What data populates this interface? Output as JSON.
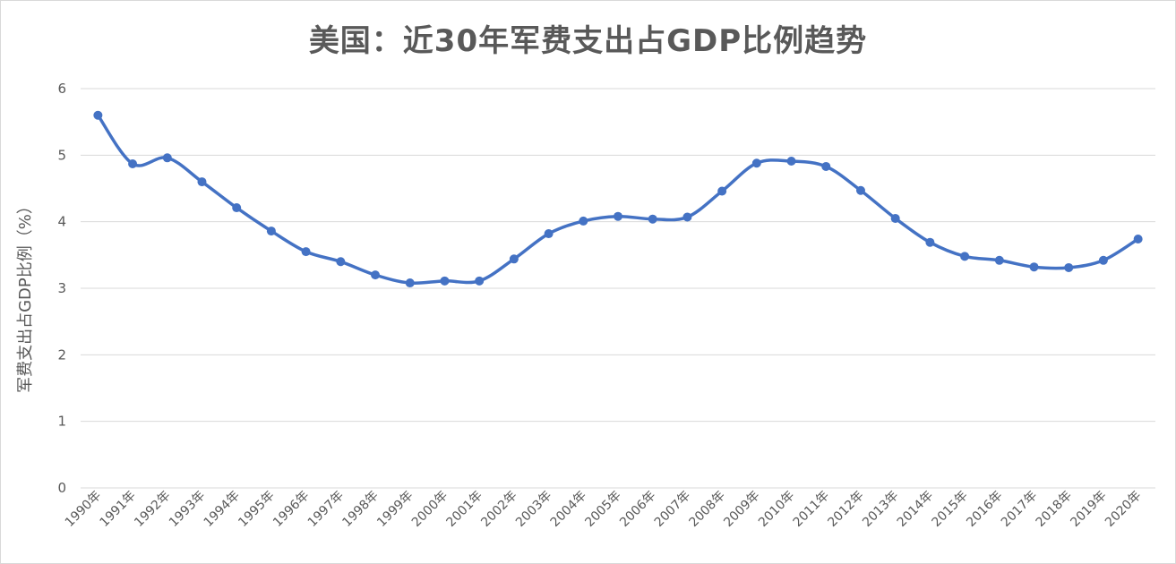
{
  "chart_data": {
    "type": "line",
    "title": "美国：近30年军费支出占GDP比例趋势",
    "xlabel": "",
    "ylabel": "军费支出占GDP比例（%）",
    "ylim": [
      0,
      6
    ],
    "yticks": [
      "0",
      "1",
      "2",
      "3",
      "4",
      "5",
      "6"
    ],
    "grid": true,
    "legend": "none",
    "categories": [
      "1990年",
      "1991年",
      "1992年",
      "1993年",
      "1994年",
      "1995年",
      "1996年",
      "1997年",
      "1998年",
      "1999年",
      "2000年",
      "2001年",
      "2002年",
      "2003年",
      "2004年",
      "2005年",
      "2006年",
      "2007年",
      "2008年",
      "2009年",
      "2010年",
      "2011年",
      "2012年",
      "2013年",
      "2014年",
      "2015年",
      "2016年",
      "2017年",
      "2018年",
      "2019年",
      "2020年"
    ],
    "series": [
      {
        "color": "#4472C4",
        "values": [
          5.6,
          4.87,
          4.96,
          4.6,
          4.21,
          3.86,
          3.55,
          3.4,
          3.2,
          3.08,
          3.11,
          3.11,
          3.44,
          3.82,
          4.01,
          4.08,
          4.04,
          4.07,
          4.46,
          4.88,
          4.91,
          4.83,
          4.47,
          4.05,
          3.69,
          3.48,
          3.42,
          3.32,
          3.31,
          3.42,
          3.74
        ]
      }
    ]
  }
}
